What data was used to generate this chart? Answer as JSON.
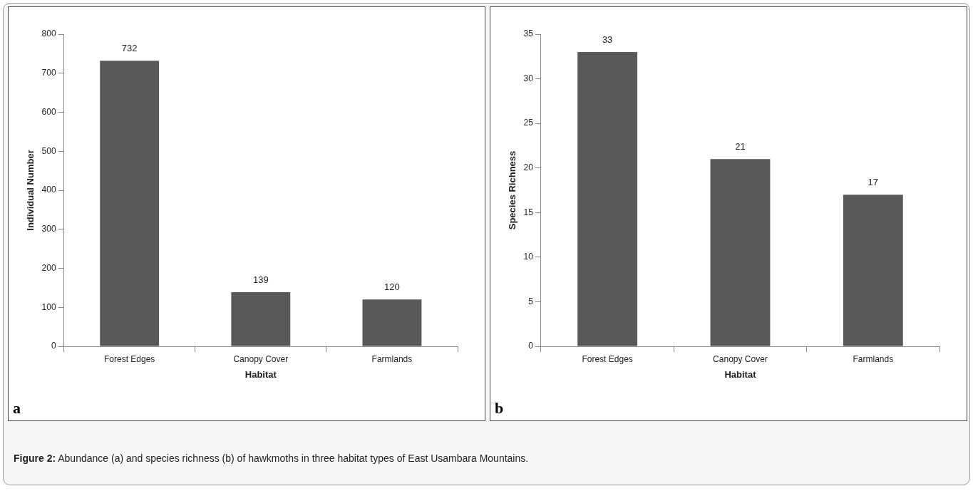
{
  "chart_data": [
    {
      "type": "bar",
      "categories": [
        "Forest Edges",
        "Canopy Cover",
        "Farmlands"
      ],
      "values": [
        732,
        139,
        120
      ],
      "color": "#595959",
      "xlabel": "Habitat",
      "ylabel": "Individual Number",
      "ylim": [
        0,
        800
      ],
      "yticks": [
        0,
        100,
        200,
        300,
        400,
        500,
        600,
        700,
        800
      ],
      "grid": false,
      "legend": false,
      "data_labels": true,
      "annotations": [
        "a"
      ]
    },
    {
      "type": "bar",
      "categories": [
        "Forest Edges",
        "Canopy Cover",
        "Farmlands"
      ],
      "values": [
        33,
        21,
        17
      ],
      "color": "#595959",
      "xlabel": "Habitat",
      "ylabel": "Species Richness",
      "ylim": [
        0,
        35
      ],
      "yticks": [
        0,
        5,
        10,
        15,
        20,
        25,
        30,
        35
      ],
      "grid": false,
      "legend": false,
      "data_labels": true,
      "annotations": [
        "b",
        "Figure 2: Abundance (a) and species richness (b) of hawkmoths in three habitat types of East Usambara Mountains."
      ]
    }
  ]
}
